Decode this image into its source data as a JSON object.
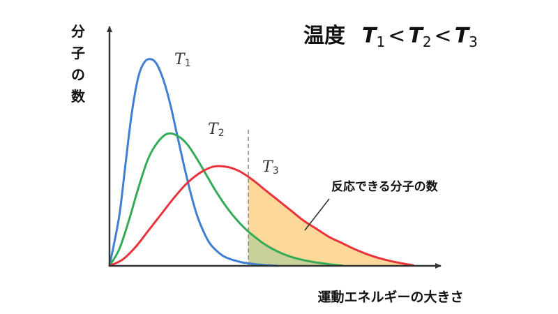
{
  "chart_data": {
    "type": "line",
    "title": {
      "prefix": "温度",
      "order": [
        {
          "sym": "T",
          "sub": "1",
          "after": "<"
        },
        {
          "sym": "T",
          "sub": "2",
          "after": "<"
        },
        {
          "sym": "T",
          "sub": "3",
          "after": ""
        }
      ]
    },
    "ylabel": [
      "分",
      "子",
      "の",
      "数"
    ],
    "xlabel": "運動エネルギーの大きさ",
    "xlim": [
      0,
      1
    ],
    "ylim": [
      0,
      1
    ],
    "threshold_x": 0.43,
    "shaded_label": "反応できる分子の数",
    "series": [
      {
        "name": "T",
        "sub": "1",
        "color": "#3f7fd1",
        "x": [
          0,
          0.03,
          0.05,
          0.07,
          0.09,
          0.11,
          0.13,
          0.145,
          0.16,
          0.175,
          0.19,
          0.21,
          0.23,
          0.25,
          0.27,
          0.29,
          0.31,
          0.33,
          0.35,
          0.37,
          0.39,
          0.41,
          0.43,
          0.45,
          0.47,
          0.5,
          0.52
        ],
        "y": [
          0,
          0.24,
          0.5,
          0.75,
          0.92,
          0.99,
          1.0,
          0.98,
          0.93,
          0.86,
          0.77,
          0.63,
          0.49,
          0.36,
          0.25,
          0.17,
          0.11,
          0.075,
          0.05,
          0.035,
          0.025,
          0.017,
          0.012,
          0.008,
          0.005,
          0.002,
          0.0
        ]
      },
      {
        "name": "T",
        "sub": "2",
        "color": "#34ab56",
        "x": [
          0,
          0.03,
          0.06,
          0.09,
          0.12,
          0.15,
          0.18,
          0.21,
          0.24,
          0.27,
          0.3,
          0.33,
          0.36,
          0.39,
          0.42,
          0.45,
          0.48,
          0.51,
          0.54,
          0.57,
          0.6,
          0.63,
          0.66,
          0.69,
          0.72
        ],
        "y": [
          0,
          0.08,
          0.22,
          0.38,
          0.52,
          0.6,
          0.64,
          0.63,
          0.59,
          0.52,
          0.44,
          0.36,
          0.29,
          0.23,
          0.18,
          0.14,
          0.105,
          0.078,
          0.056,
          0.04,
          0.028,
          0.019,
          0.012,
          0.006,
          0.002
        ]
      },
      {
        "name": "T",
        "sub": "3",
        "color": "#e8333a",
        "x": [
          0,
          0.04,
          0.08,
          0.12,
          0.16,
          0.2,
          0.24,
          0.28,
          0.32,
          0.36,
          0.4,
          0.44,
          0.48,
          0.52,
          0.56,
          0.6,
          0.64,
          0.68,
          0.72,
          0.76,
          0.8,
          0.84,
          0.88,
          0.92,
          0.94
        ],
        "y": [
          0,
          0.03,
          0.09,
          0.17,
          0.25,
          0.33,
          0.4,
          0.45,
          0.48,
          0.48,
          0.46,
          0.42,
          0.37,
          0.32,
          0.27,
          0.22,
          0.18,
          0.14,
          0.11,
          0.08,
          0.055,
          0.035,
          0.02,
          0.008,
          0.003
        ]
      }
    ],
    "colors": {
      "axis": "#333333",
      "fill_high": "#fcd89a",
      "fill_low": "#c9d19a",
      "threshold": "#777777"
    }
  }
}
